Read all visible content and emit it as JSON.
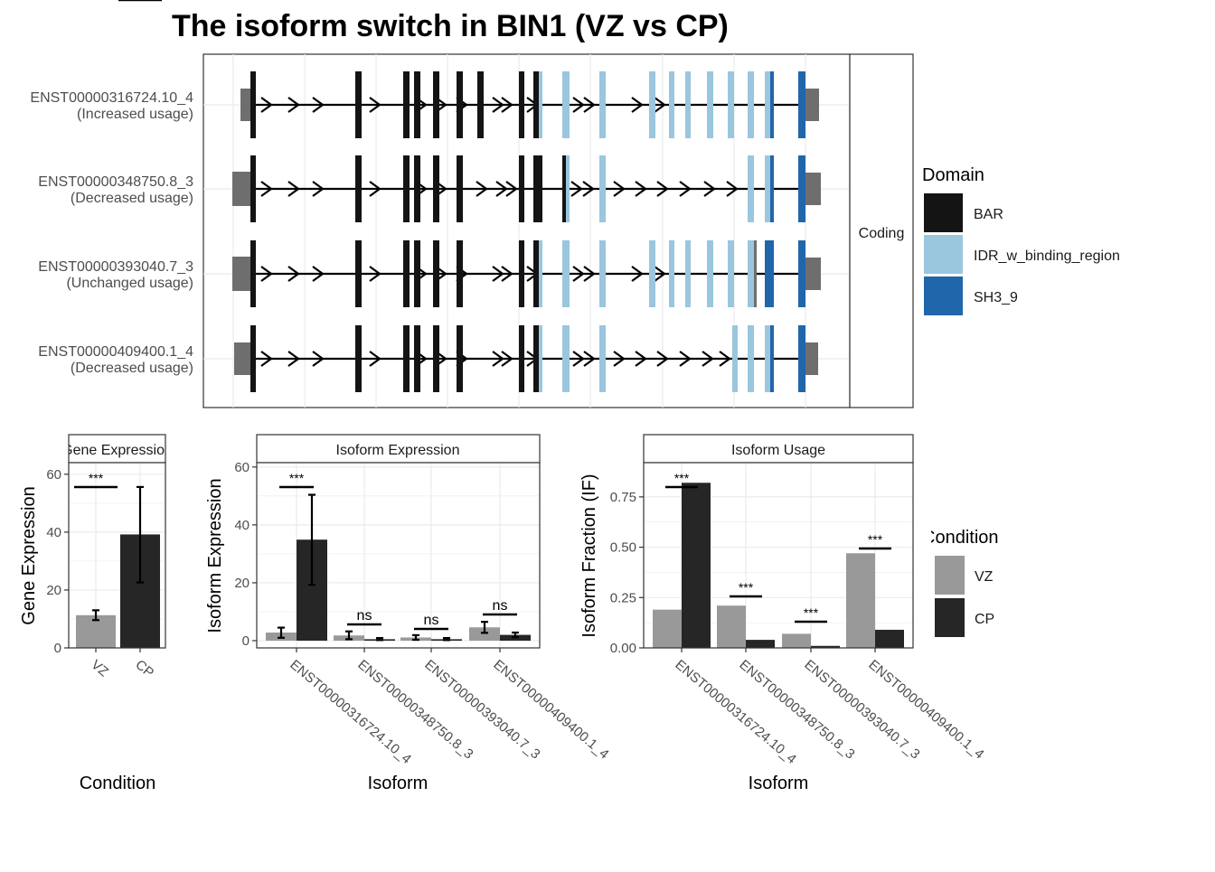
{
  "title": "The isoform switch in BIN1 (VZ vs CP)",
  "colors": {
    "BAR": "#141414",
    "IDR_w_binding_region": "#9ac6de",
    "SH3_9": "#2066aa",
    "utr": "#6e6e6e",
    "VZ": "#999999",
    "CP": "#262626",
    "grid": "#ebebeb",
    "panel_border": "#333333"
  },
  "chart_data": [
    {
      "type": "gene-structure",
      "facet_label": "Coding",
      "legend": {
        "title": "Domain",
        "entries": [
          {
            "key": "BAR",
            "label": "BAR"
          },
          {
            "key": "IDR_w_binding_region",
            "label": "IDR_w_binding_region"
          },
          {
            "key": "SH3_9",
            "label": "SH3_9"
          }
        ]
      },
      "transcripts": [
        {
          "id": "ENST00000316724.10_4",
          "usage": "(Increased usage)"
        },
        {
          "id": "ENST00000348750.8_3",
          "usage": "(Decreased usage)"
        },
        {
          "id": "ENST00000393040.7_3",
          "usage": "(Unchanged usage)"
        },
        {
          "id": "ENST00000409400.1_4",
          "usage": "(Decreased usage)"
        }
      ]
    },
    {
      "type": "bar",
      "strip": "Gene Expression",
      "xlabel": "Condition",
      "ylabel": "Gene Expression",
      "categories": [
        "VZ",
        "CP"
      ],
      "values": [
        11.3,
        39.2
      ],
      "err_low": [
        9.6,
        22.6
      ],
      "err_high": [
        13.0,
        55.6
      ],
      "ylim": [
        0,
        64
      ],
      "yticks": [
        0,
        20,
        40,
        60
      ],
      "signif": "***"
    },
    {
      "type": "bar",
      "strip": "Isoform Expression",
      "xlabel": "Isoform",
      "ylabel": "Isoform Expression",
      "categories": [
        "ENST00000316724.10_4",
        "ENST00000348750.8_3",
        "ENST00000393040.7_3",
        "ENST00000409400.1_4"
      ],
      "series": [
        {
          "name": "VZ",
          "values": [
            2.8,
            1.8,
            1.1,
            4.6
          ],
          "err_low": [
            1.0,
            0.5,
            0.3,
            2.7
          ],
          "err_high": [
            4.5,
            3.2,
            1.9,
            6.5
          ]
        },
        {
          "name": "CP",
          "values": [
            34.9,
            0.5,
            0.5,
            2.0
          ],
          "err_low": [
            19.3,
            0.2,
            0.2,
            1.2
          ],
          "err_high": [
            50.4,
            0.9,
            0.9,
            2.8
          ]
        }
      ],
      "ylim": [
        -2.5,
        61.5
      ],
      "yticks": [
        0,
        20,
        40,
        60
      ],
      "signif": [
        "***",
        "ns",
        "ns",
        "ns"
      ]
    },
    {
      "type": "bar",
      "strip": "Isoform Usage",
      "xlabel": "Isoform",
      "ylabel": "Isoform Fraction (IF)",
      "categories": [
        "ENST00000316724.10_4",
        "ENST00000348750.8_3",
        "ENST00000393040.7_3",
        "ENST00000409400.1_4"
      ],
      "series": [
        {
          "name": "VZ",
          "values": [
            0.19,
            0.21,
            0.07,
            0.47
          ]
        },
        {
          "name": "CP",
          "values": [
            0.82,
            0.04,
            0.01,
            0.09
          ]
        }
      ],
      "ylim": [
        0,
        0.92
      ],
      "yticks": [
        "0.00",
        "0.25",
        "0.50",
        "0.75"
      ],
      "signif": [
        "***",
        "***",
        "***",
        "***"
      ]
    }
  ],
  "condition_legend": {
    "title": "Condition",
    "entries": [
      {
        "key": "VZ",
        "label": "VZ"
      },
      {
        "key": "CP",
        "label": "CP"
      }
    ]
  }
}
